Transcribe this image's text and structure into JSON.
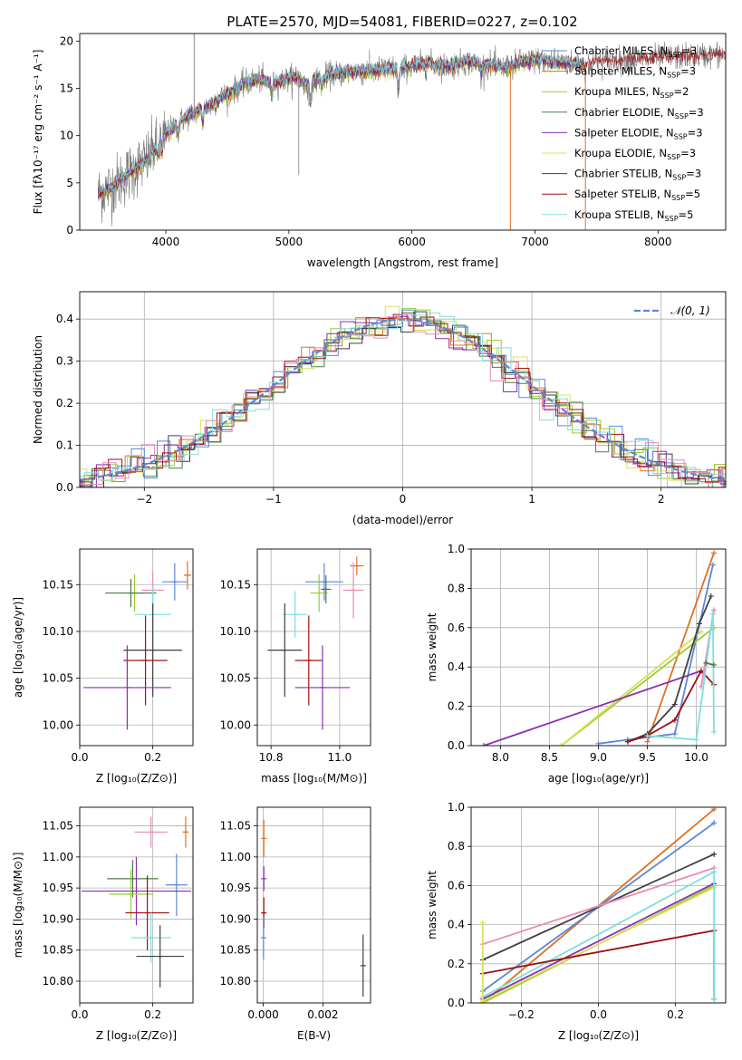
{
  "figure": {
    "title": "PLATE=2570, MJD=54081, FIBERID=0227, z=0.102"
  },
  "colors": {
    "chabrier_miles": "#5b88d6",
    "salpeter_miles": "#e07020",
    "kroupa_miles": "#9acd32",
    "chabrier_elodie": "#4a7a4a",
    "salpeter_elodie": "#8b2fb0",
    "kroupa_elodie": "#d8e05a",
    "chabrier_stelib": "#404040",
    "salpeter_stelib": "#a01010",
    "kroupa_stelib": "#80dede",
    "pink": "#e88ab8",
    "normal_curve": "#5b88d6",
    "spectrum_gray": "#777777"
  },
  "chart_data": [
    {
      "id": "spectrum",
      "type": "line",
      "title": "PLATE=2570, MJD=54081, FIBERID=0227, z=0.102",
      "xlabel": "wavelength [Angstrom, rest frame]",
      "ylabel": "Flux [fλ10⁻¹⁷ erg cm⁻² s⁻¹ A⁻¹]",
      "xlim": [
        3300,
        8550
      ],
      "ylim": [
        0,
        20.8
      ],
      "xticks": [
        4000,
        5000,
        6000,
        7000,
        8000
      ],
      "yticks": [
        0,
        5,
        10,
        15,
        20
      ],
      "legend_position": "right",
      "legend": [
        {
          "label": "Chabrier MILES, N",
          "sub": "SSP",
          "tail": "=3",
          "color_key": "chabrier_miles"
        },
        {
          "label": "Salpeter MILES, N",
          "sub": "SSP",
          "tail": "=3",
          "color_key": "salpeter_miles"
        },
        {
          "label": "Kroupa MILES, N",
          "sub": "SSP",
          "tail": "=2",
          "color_key": "kroupa_miles"
        },
        {
          "label": "Chabrier ELODIE, N",
          "sub": "SSP",
          "tail": "=3",
          "color_key": "chabrier_elodie"
        },
        {
          "label": "Salpeter ELODIE, N",
          "sub": "SSP",
          "tail": "=3",
          "color_key": "salpeter_elodie"
        },
        {
          "label": "Kroupa ELODIE, N",
          "sub": "SSP",
          "tail": "=3",
          "color_key": "kroupa_elodie"
        },
        {
          "label": "Chabrier STELIB, N",
          "sub": "SSP",
          "tail": "=3",
          "color_key": "chabrier_stelib"
        },
        {
          "label": "Salpeter STELIB, N",
          "sub": "SSP",
          "tail": "=5",
          "color_key": "salpeter_stelib"
        },
        {
          "label": "Kroupa STELIB, N",
          "sub": "SSP",
          "tail": "=5",
          "color_key": "kroupa_stelib"
        }
      ],
      "continuum": [
        [
          3450,
          3.8
        ],
        [
          3550,
          4.5
        ],
        [
          3650,
          5.5
        ],
        [
          3750,
          6.5
        ],
        [
          3850,
          7.5
        ],
        [
          3950,
          9.5
        ],
        [
          4050,
          10.8
        ],
        [
          4150,
          11.8
        ],
        [
          4250,
          12.5
        ],
        [
          4350,
          13.2
        ],
        [
          4450,
          14
        ],
        [
          4550,
          14.8
        ],
        [
          4650,
          15.6
        ],
        [
          4750,
          16
        ],
        [
          4850,
          15.6
        ],
        [
          4950,
          15.8
        ],
        [
          5050,
          16.2
        ],
        [
          5150,
          15.3
        ],
        [
          5250,
          16
        ],
        [
          5350,
          16.5
        ],
        [
          5500,
          16.7
        ],
        [
          5650,
          16.8
        ],
        [
          5800,
          17.1
        ],
        [
          5900,
          17
        ],
        [
          6000,
          17.4
        ],
        [
          6150,
          17.6
        ],
        [
          6300,
          17.3
        ],
        [
          6450,
          17.8
        ],
        [
          6600,
          17.5
        ],
        [
          6750,
          17.2
        ],
        [
          6900,
          17.8
        ],
        [
          7050,
          18
        ],
        [
          7200,
          17.7
        ],
        [
          7350,
          17.6
        ],
        [
          7400,
          17.5
        ]
      ],
      "stelib_extension": [
        [
          7400,
          17.5
        ],
        [
          7500,
          17.8
        ],
        [
          7650,
          17.9
        ],
        [
          7800,
          18.1
        ],
        [
          7950,
          18.2
        ],
        [
          8100,
          18.3
        ],
        [
          8250,
          18.4
        ],
        [
          8400,
          18.5
        ],
        [
          8550,
          18.6
        ]
      ],
      "absorption_features": [
        [
          3934,
          1.5
        ],
        [
          3969,
          1.8
        ],
        [
          4101,
          1.2
        ],
        [
          4300,
          1.5
        ],
        [
          4861,
          1.6
        ],
        [
          5175,
          2.5
        ],
        [
          5270,
          1
        ],
        [
          5890,
          2.5
        ],
        [
          6563,
          1
        ]
      ],
      "spikes": [
        [
          4230,
          20.8
        ],
        [
          3920,
          11.5
        ],
        [
          5080,
          5.8
        ],
        [
          6800,
          0
        ],
        [
          7410,
          0
        ]
      ]
    },
    {
      "id": "residuals",
      "type": "histogram",
      "xlabel": "(data-model)/error",
      "ylabel": "Normed distribution",
      "xlim": [
        -2.5,
        2.5
      ],
      "ylim": [
        0,
        0.465
      ],
      "xticks": [
        -2,
        -1,
        0,
        1,
        2
      ],
      "yticks": [
        0.0,
        0.1,
        0.2,
        0.3,
        0.4
      ],
      "grid": true,
      "legend_position": "top-right",
      "curve_label": "𝒩(0, 1)",
      "curve": {
        "mean": 0,
        "sigma": 1
      }
    },
    {
      "id": "age-vs-Z",
      "type": "errorbar",
      "xlabel": "Z [log₁₀(Z/Z⊙)]",
      "ylabel": "age  [log₁₀(age/yr)]",
      "xlim": [
        0,
        0.31
      ],
      "ylim": [
        9.978,
        10.188
      ],
      "xticks": [
        0.0,
        0.2
      ],
      "yticks": [
        10.0,
        10.05,
        10.1,
        10.15
      ],
      "grid": true,
      "points": [
        {
          "color_key": "chabrier_miles",
          "x": 0.26,
          "xerr": 0.035,
          "y": 10.153,
          "yerr": 0.02
        },
        {
          "color_key": "salpeter_miles",
          "x": 0.295,
          "xerr": 0.01,
          "y": 10.16,
          "yerr": 0.015
        },
        {
          "color_key": "kroupa_miles",
          "x": 0.15,
          "xerr": 0.035,
          "y": 10.141,
          "yerr": 0.02
        },
        {
          "color_key": "chabrier_elodie",
          "x": 0.14,
          "xerr": 0.07,
          "y": 10.141,
          "yerr": 0.015
        },
        {
          "color_key": "pink",
          "x": 0.2,
          "xerr": 0.03,
          "y": 10.144,
          "yerr": 0.02
        },
        {
          "color_key": "kroupa_stelib",
          "x": 0.2,
          "xerr": 0.05,
          "y": 10.118,
          "yerr": 0.03
        },
        {
          "color_key": "chabrier_stelib",
          "x": 0.2,
          "xerr": 0.08,
          "y": 10.08,
          "yerr": 0.05
        },
        {
          "color_key": "salpeter_stelib",
          "x": 0.18,
          "xerr": 0.06,
          "y": 10.069,
          "yerr": 0.048
        },
        {
          "color_key": "salpeter_elodie",
          "x": 0.13,
          "xerr": 0.12,
          "y": 10.04,
          "yerr": 0.045
        }
      ]
    },
    {
      "id": "age-vs-mass",
      "type": "errorbar",
      "xlabel": "mass [log₁₀(M/M⊙)]",
      "ylabel": "",
      "xlim": [
        10.76,
        11.09
      ],
      "ylim": [
        9.978,
        10.188
      ],
      "xticks": [
        10.8,
        11.0
      ],
      "yticks": [
        10.0,
        10.05,
        10.1,
        10.15
      ],
      "grid": true,
      "points": [
        {
          "color_key": "chabrier_miles",
          "x": 10.955,
          "xerr": 0.055,
          "y": 10.153,
          "yerr": 0.02
        },
        {
          "color_key": "salpeter_miles",
          "x": 11.05,
          "xerr": 0.02,
          "y": 10.17,
          "yerr": 0.01
        },
        {
          "color_key": "kroupa_miles",
          "x": 10.94,
          "xerr": 0.025,
          "y": 10.141,
          "yerr": 0.02
        },
        {
          "color_key": "chabrier_elodie",
          "x": 10.96,
          "xerr": 0.015,
          "y": 10.145,
          "yerr": 0.015
        },
        {
          "color_key": "pink",
          "x": 11.04,
          "xerr": 0.03,
          "y": 10.144,
          "yerr": 0.03
        },
        {
          "color_key": "kroupa_stelib",
          "x": 10.87,
          "xerr": 0.035,
          "y": 10.118,
          "yerr": 0.025
        },
        {
          "color_key": "chabrier_stelib",
          "x": 10.84,
          "xerr": 0.05,
          "y": 10.08,
          "yerr": 0.05
        },
        {
          "color_key": "salpeter_stelib",
          "x": 10.91,
          "xerr": 0.04,
          "y": 10.069,
          "yerr": 0.048
        },
        {
          "color_key": "salpeter_elodie",
          "x": 10.95,
          "xerr": 0.08,
          "y": 10.04,
          "yerr": 0.045
        }
      ]
    },
    {
      "id": "weight-vs-age",
      "type": "line",
      "xlabel": "age  [log₁₀(age/yr)]",
      "ylabel": "mass weight",
      "xlim": [
        7.7,
        10.3
      ],
      "ylim": [
        0,
        1
      ],
      "xticks": [
        8.0,
        8.5,
        9.0,
        9.5,
        10.0
      ],
      "yticks": [
        0.0,
        0.2,
        0.4,
        0.6,
        0.8,
        1.0
      ],
      "grid": true,
      "series": [
        {
          "color_key": "salpeter_miles",
          "x": [
            9.5,
            10.18
          ],
          "y": [
            0.02,
            0.98
          ]
        },
        {
          "color_key": "chabrier_miles",
          "x": [
            9.0,
            9.3,
            9.78,
            10.17
          ],
          "y": [
            0.01,
            0.03,
            0.06,
            0.92
          ]
        },
        {
          "color_key": "kroupa_miles",
          "x": [
            8.62,
            10.18
          ],
          "y": [
            0.0,
            0.6
          ]
        },
        {
          "color_key": "kroupa_elodie",
          "x": [
            8.62,
            10.05
          ],
          "y": [
            0.0,
            0.58
          ]
        },
        {
          "color_key": "salpeter_elodie",
          "x": [
            7.83,
            10.05
          ],
          "y": [
            0.0,
            0.38
          ]
        },
        {
          "color_key": "chabrier_stelib",
          "x": [
            9.3,
            9.5,
            9.78,
            10.03,
            10.15
          ],
          "y": [
            0.02,
            0.06,
            0.21,
            0.62,
            0.76
          ]
        },
        {
          "color_key": "salpeter_stelib",
          "x": [
            9.3,
            9.5,
            9.78,
            10.05,
            10.18
          ],
          "y": [
            0.02,
            0.05,
            0.13,
            0.38,
            0.31
          ]
        },
        {
          "color_key": "pink",
          "x": [
            10.05,
            10.18
          ],
          "y": [
            0.3,
            0.69
          ]
        },
        {
          "color_key": "kroupa_stelib",
          "x": [
            9.5,
            10.0,
            10.17
          ],
          "y": [
            0.05,
            0.03,
            0.67
          ]
        },
        {
          "color_key": "kroupa_stelib",
          "x": [
            10.17,
            10.18
          ],
          "y": [
            0.67,
            0.07
          ]
        },
        {
          "color_key": "chabrier_elodie",
          "x": [
            10.1,
            10.18
          ],
          "y": [
            0.42,
            0.41
          ]
        }
      ]
    },
    {
      "id": "mass-vs-Z",
      "type": "errorbar",
      "xlabel": "Z [log₁₀(Z/Z⊙)]",
      "ylabel": "mass [log₁₀(M/M⊙)]",
      "xlim": [
        0,
        0.31
      ],
      "ylim": [
        10.765,
        11.08
      ],
      "xticks": [
        0.0,
        0.2
      ],
      "yticks": [
        10.8,
        10.85,
        10.9,
        10.95,
        11.0,
        11.05
      ],
      "grid": true,
      "points": [
        {
          "color_key": "pink",
          "x": 0.195,
          "xerr": 0.045,
          "y": 11.04,
          "yerr": 0.025
        },
        {
          "color_key": "salpeter_miles",
          "x": 0.29,
          "xerr": 0.008,
          "y": 11.04,
          "yerr": 0.025
        },
        {
          "color_key": "chabrier_elodie",
          "x": 0.145,
          "xerr": 0.07,
          "y": 10.965,
          "yerr": 0.03
        },
        {
          "color_key": "chabrier_miles",
          "x": 0.265,
          "xerr": 0.03,
          "y": 10.955,
          "yerr": 0.05
        },
        {
          "color_key": "salpeter_elodie",
          "x": 0.155,
          "xerr": 0.15,
          "y": 10.945,
          "yerr": 0.055
        },
        {
          "color_key": "kroupa_miles",
          "x": 0.14,
          "xerr": 0.06,
          "y": 10.94,
          "yerr": 0.04
        },
        {
          "color_key": "salpeter_stelib",
          "x": 0.185,
          "xerr": 0.06,
          "y": 10.91,
          "yerr": 0.06
        },
        {
          "color_key": "kroupa_stelib",
          "x": 0.195,
          "xerr": 0.055,
          "y": 10.87,
          "yerr": 0.04
        },
        {
          "color_key": "chabrier_stelib",
          "x": 0.22,
          "xerr": 0.065,
          "y": 10.84,
          "yerr": 0.05
        }
      ]
    },
    {
      "id": "mass-vs-EBV",
      "type": "errorbar",
      "xlabel": "E(B-V)",
      "ylabel": "",
      "xlim": [
        -0.0002,
        0.0036
      ],
      "ylim": [
        10.765,
        11.08
      ],
      "xticks": [
        0.0,
        0.002
      ],
      "yticks": [
        10.8,
        10.85,
        10.9,
        10.95,
        11.0,
        11.05
      ],
      "grid": true,
      "points": [
        {
          "color_key": "salpeter_miles",
          "x": 2e-05,
          "xerr": 0,
          "y": 11.03,
          "yerr": 0.03
        },
        {
          "color_key": "salpeter_elodie",
          "x": 2e-05,
          "xerr": 0,
          "y": 10.965,
          "yerr": 0.02
        },
        {
          "color_key": "salpeter_stelib",
          "x": 2e-05,
          "xerr": 0,
          "y": 10.91,
          "yerr": 0.025
        },
        {
          "color_key": "chabrier_miles",
          "x": 1e-05,
          "xerr": 0,
          "y": 10.87,
          "yerr": 0.035
        },
        {
          "color_key": "chabrier_stelib",
          "x": 0.00335,
          "xerr": 0,
          "y": 10.825,
          "yerr": 0.05
        }
      ]
    },
    {
      "id": "weight-vs-Z",
      "type": "line",
      "xlabel": "Z [log₁₀(Z/Z⊙)]",
      "ylabel": "mass weight",
      "xlim": [
        -0.33,
        0.33
      ],
      "ylim": [
        0,
        1
      ],
      "xticks": [
        -0.2,
        0.0,
        0.2
      ],
      "yticks": [
        0.0,
        0.2,
        0.4,
        0.6,
        0.8,
        1.0
      ],
      "grid": true,
      "series": [
        {
          "color_key": "salpeter_miles",
          "x": [
            -0.3,
            0.3
          ],
          "y": [
            0.0,
            0.99
          ]
        },
        {
          "color_key": "chabrier_miles",
          "x": [
            -0.3,
            0.3
          ],
          "y": [
            0.06,
            0.92
          ]
        },
        {
          "color_key": "chabrier_stelib",
          "x": [
            -0.3,
            0.3
          ],
          "y": [
            0.22,
            0.76
          ]
        },
        {
          "color_key": "pink",
          "x": [
            -0.3,
            0.3
          ],
          "y": [
            0.3,
            0.69
          ]
        },
        {
          "color_key": "kroupa_stelib",
          "x": [
            -0.3,
            0.3
          ],
          "y": [
            0.03,
            0.67
          ]
        },
        {
          "color_key": "salpeter_elodie",
          "x": [
            -0.3,
            0.3
          ],
          "y": [
            0.02,
            0.61
          ]
        },
        {
          "color_key": "kroupa_miles",
          "x": [
            -0.3,
            0.3
          ],
          "y": [
            0.0,
            0.6
          ]
        },
        {
          "color_key": "kroupa_elodie",
          "x": [
            -0.3,
            0.3
          ],
          "y": [
            0.01,
            0.59
          ]
        },
        {
          "color_key": "salpeter_stelib",
          "x": [
            -0.3,
            0.3
          ],
          "y": [
            0.15,
            0.37
          ]
        },
        {
          "color_key": "kroupa_elodie",
          "x": [
            -0.3,
            -0.3
          ],
          "y": [
            0.0,
            0.41
          ]
        },
        {
          "color_key": "salpeter_stelib",
          "x": [
            0.3,
            0.3
          ],
          "y": [
            0.02,
            0.37
          ]
        },
        {
          "color_key": "kroupa_stelib",
          "x": [
            0.3,
            0.3
          ],
          "y": [
            0.02,
            0.67
          ]
        }
      ]
    }
  ]
}
